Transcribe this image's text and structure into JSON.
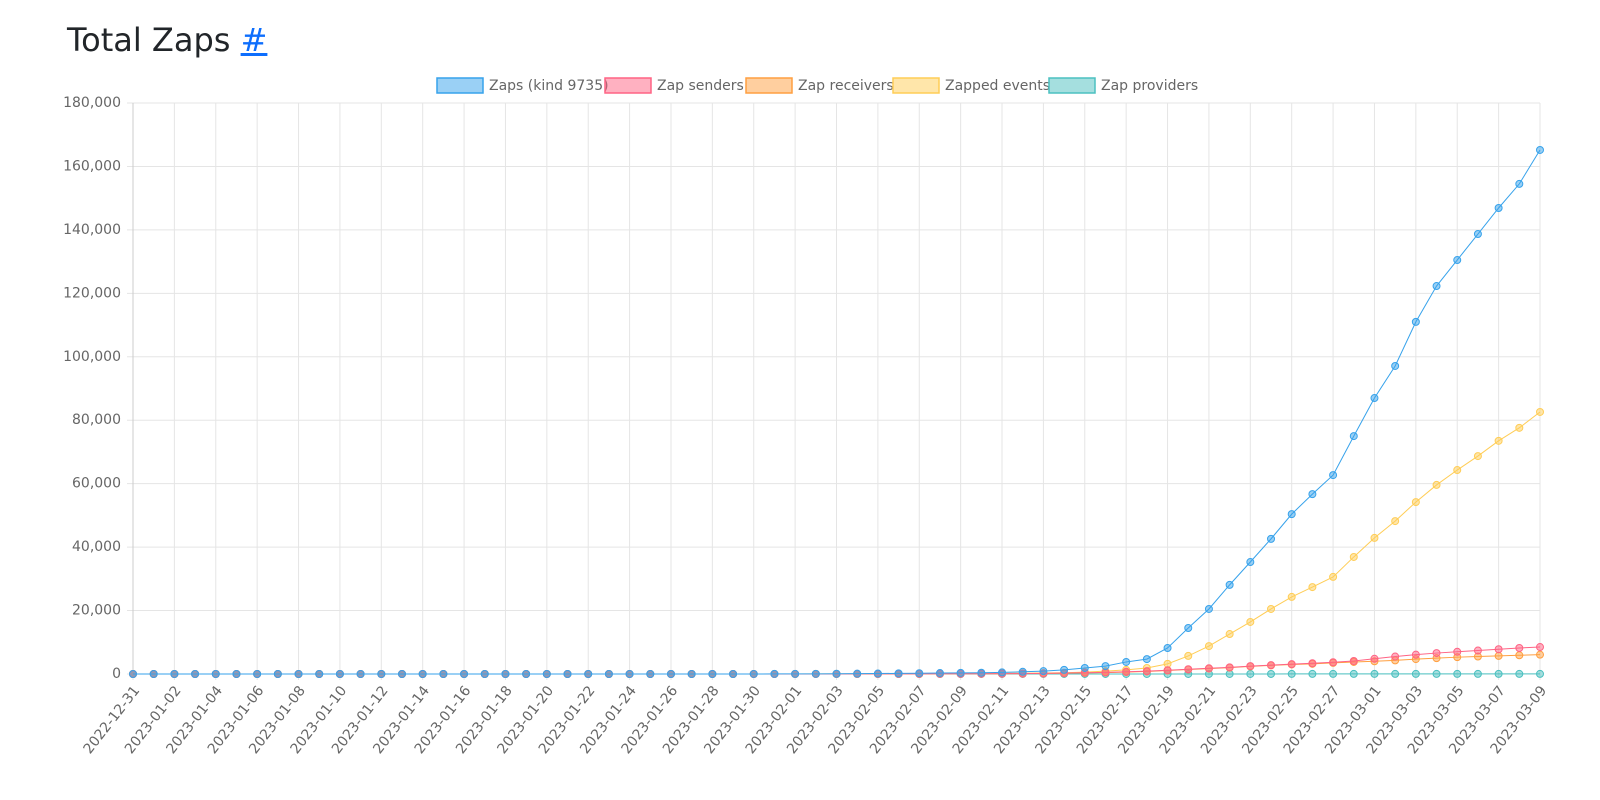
{
  "chart_data": {
    "type": "line",
    "title": "Total Zaps",
    "title_link": "#",
    "categories": [
      "2022-12-31",
      null,
      "2023-01-02",
      null,
      "2023-01-04",
      null,
      "2023-01-06",
      null,
      "2023-01-08",
      null,
      "2023-01-10",
      null,
      "2023-01-12",
      null,
      "2023-01-14",
      null,
      "2023-01-16",
      null,
      "2023-01-18",
      null,
      "2023-01-20",
      null,
      "2023-01-22",
      null,
      "2023-01-24",
      null,
      "2023-01-26",
      null,
      "2023-01-28",
      null,
      "2023-01-30",
      null,
      "2023-02-01",
      null,
      "2023-02-03",
      null,
      "2023-02-05",
      null,
      "2023-02-07",
      null,
      "2023-02-09",
      null,
      "2023-02-11",
      null,
      "2023-02-13",
      null,
      "2023-02-15",
      null,
      "2023-02-17",
      null,
      "2023-02-19",
      null,
      "2023-02-21",
      null,
      "2023-02-23",
      null,
      "2023-02-25",
      null,
      "2023-02-27",
      null,
      "2023-03-01",
      null,
      "2023-03-03",
      null,
      "2023-03-05",
      null,
      "2023-03-07",
      null,
      "2023-03-09"
    ],
    "series": [
      {
        "name": "Zaps (kind 9735)",
        "color": "#36a2eb",
        "values": [
          0,
          0,
          0,
          0,
          0,
          0,
          0,
          0,
          0,
          0,
          0,
          0,
          0,
          0,
          0,
          0,
          0,
          0,
          0,
          0,
          0,
          0,
          0,
          0,
          0,
          0,
          0,
          0,
          0,
          0,
          10,
          20,
          30,
          50,
          80,
          100,
          150,
          200,
          250,
          300,
          350,
          400,
          500,
          700,
          900,
          1300,
          1900,
          2500,
          3800,
          4700,
          8200,
          14500,
          20500,
          28100,
          35300,
          42600,
          50400,
          56700,
          62700,
          75000,
          87000,
          97100,
          111000,
          122300,
          130500,
          138700,
          146900,
          154500,
          165200
        ]
      },
      {
        "name": "Zap senders",
        "color": "#ff6384",
        "values": [
          0,
          0,
          0,
          0,
          0,
          0,
          0,
          0,
          0,
          0,
          0,
          0,
          0,
          0,
          0,
          0,
          0,
          0,
          0,
          0,
          0,
          0,
          0,
          0,
          0,
          0,
          0,
          0,
          0,
          0,
          2,
          4,
          6,
          10,
          15,
          20,
          30,
          40,
          50,
          60,
          70,
          90,
          110,
          140,
          200,
          300,
          400,
          500,
          700,
          900,
          1200,
          1500,
          1800,
          2100,
          2500,
          2800,
          3100,
          3400,
          3700,
          4100,
          4800,
          5500,
          6100,
          6600,
          7000,
          7400,
          7800,
          8200,
          8500
        ]
      },
      {
        "name": "Zap receivers",
        "color": "#ff9f40",
        "values": [
          0,
          0,
          0,
          0,
          0,
          0,
          0,
          0,
          0,
          0,
          0,
          0,
          0,
          0,
          0,
          0,
          0,
          0,
          0,
          0,
          0,
          0,
          0,
          0,
          0,
          0,
          0,
          0,
          0,
          0,
          2,
          3,
          5,
          8,
          12,
          15,
          20,
          30,
          40,
          50,
          60,
          70,
          90,
          120,
          150,
          250,
          350,
          450,
          600,
          800,
          1100,
          1400,
          1700,
          2000,
          2400,
          2700,
          3000,
          3200,
          3500,
          3800,
          4000,
          4300,
          4700,
          5000,
          5300,
          5500,
          5700,
          5900,
          6100
        ]
      },
      {
        "name": "Zapped events",
        "color": "#ffcd56",
        "values": [
          0,
          0,
          0,
          0,
          0,
          0,
          0,
          0,
          0,
          0,
          0,
          0,
          0,
          0,
          0,
          0,
          0,
          0,
          0,
          0,
          0,
          0,
          0,
          0,
          0,
          0,
          0,
          0,
          0,
          0,
          5,
          10,
          15,
          25,
          40,
          50,
          70,
          90,
          110,
          130,
          150,
          170,
          200,
          250,
          300,
          400,
          600,
          900,
          1300,
          1900,
          3200,
          5700,
          8800,
          12600,
          16400,
          20500,
          24300,
          27400,
          30600,
          36900,
          42900,
          48200,
          54200,
          59600,
          64300,
          68700,
          73500,
          77600,
          82600
        ]
      },
      {
        "name": "Zap providers",
        "color": "#4bc0c0",
        "values": [
          0,
          0,
          0,
          0,
          0,
          0,
          0,
          0,
          0,
          0,
          0,
          0,
          0,
          0,
          0,
          0,
          0,
          0,
          0,
          0,
          0,
          0,
          0,
          0,
          0,
          0,
          0,
          0,
          0,
          0,
          1,
          1,
          1,
          2,
          2,
          3,
          3,
          4,
          4,
          5,
          5,
          6,
          6,
          7,
          8,
          9,
          10,
          11,
          12,
          13,
          14,
          15,
          16,
          17,
          18,
          19,
          20,
          21,
          22,
          23,
          24,
          25,
          26,
          27,
          28,
          29,
          30,
          31,
          32
        ]
      }
    ],
    "ylim": [
      0,
      180000
    ],
    "yticks": [
      0,
      {
        "value": 20000,
        "label": "20,000"
      },
      {
        "value": 40000,
        "label": "40,000"
      },
      {
        "value": 60000,
        "label": "60,000"
      },
      {
        "value": 80000,
        "label": "80,000"
      },
      {
        "value": 100000,
        "label": "100,000"
      },
      {
        "value": 120000,
        "label": "120,000"
      },
      {
        "value": 140000,
        "label": "140,000"
      },
      {
        "value": 160000,
        "label": "160,000"
      },
      {
        "value": 180000,
        "label": "180,000"
      }
    ],
    "grid": true,
    "legend": "top"
  }
}
